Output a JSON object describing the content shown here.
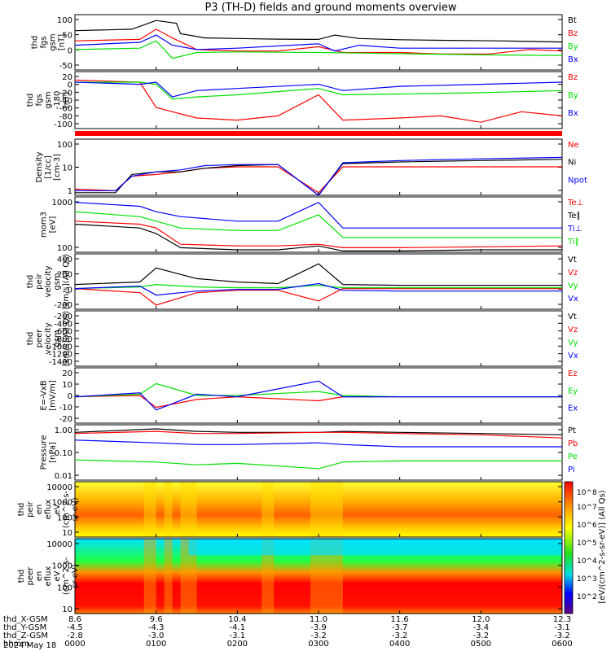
{
  "title": "P3 (TH-D) fields and ground moments overview",
  "date_label": "2024 May 18",
  "ephemeris": {
    "rows": [
      {
        "name": "thd_X-GSM",
        "values": [
          "8.6",
          "9.6",
          "10.4",
          "11.0",
          "11.6",
          "12.0",
          "12.3"
        ]
      },
      {
        "name": "thd_Y-GSM",
        "values": [
          "-4.5",
          "-4.3",
          "-4.1",
          "-3.9",
          "-3.7",
          "-3.4",
          "-3.1"
        ]
      },
      {
        "name": "thd_Z-GSM",
        "values": [
          "-2.8",
          "-3.0",
          "-3.1",
          "-3.2",
          "-3.2",
          "-3.2",
          "-3.2"
        ]
      },
      {
        "name": "hhmm",
        "values": [
          "0000",
          "0100",
          "0200",
          "0300",
          "0400",
          "0500",
          "0600"
        ]
      }
    ]
  },
  "colorbar": {
    "label": "[eV/(cm^2-s-sr-eV)] (All Qs)",
    "ticks": [
      "10^8",
      "10^7",
      "10^6",
      "10^5",
      "10^4",
      "10^3",
      "10^2"
    ]
  },
  "colors": {
    "black": "#000000",
    "red": "#ff0000",
    "green": "#00e000",
    "blue": "#0000ff"
  },
  "chart_data": [
    {
      "type": "line",
      "ylabel": [
        "thd",
        "fgs",
        "gsm",
        "[nT]"
      ],
      "yticks": [
        "100",
        "50",
        "0",
        "-50"
      ],
      "legend": [
        {
          "text": "Bt",
          "color": "black"
        },
        {
          "text": "Bz",
          "color": "red"
        },
        {
          "text": "By",
          "color": "green"
        },
        {
          "text": "Bx",
          "color": "blue"
        }
      ],
      "series": [
        {
          "color": "black",
          "x": [
            0,
            0.7,
            1.0,
            1.25,
            1.3,
            1.6,
            2,
            2.5,
            3,
            3.2,
            3.5,
            4,
            4.5,
            5.2,
            5.6,
            6
          ],
          "y": [
            55,
            60,
            90,
            80,
            45,
            30,
            28,
            26,
            25,
            40,
            28,
            24,
            22,
            20,
            18,
            16
          ]
        },
        {
          "color": "red",
          "x": [
            0,
            0.8,
            1.0,
            1.2,
            1.5,
            2,
            2.5,
            3,
            3.3,
            4,
            4.5,
            5.1,
            5.6,
            6
          ],
          "y": [
            20,
            25,
            60,
            30,
            -10,
            -15,
            -15,
            0,
            -20,
            -20,
            -25,
            -25,
            -10,
            -15
          ]
        },
        {
          "color": "green",
          "x": [
            0,
            0.8,
            1.0,
            1.2,
            1.5,
            2,
            3,
            3.5,
            4,
            5,
            6
          ],
          "y": [
            -10,
            -5,
            20,
            -40,
            -20,
            -18,
            -20,
            -22,
            -24,
            -28,
            -30
          ]
        },
        {
          "color": "blue",
          "x": [
            0,
            0.8,
            1.0,
            1.2,
            1.5,
            2,
            3,
            3.2,
            3.5,
            4,
            5,
            6
          ],
          "y": [
            5,
            15,
            40,
            5,
            -10,
            -5,
            10,
            -15,
            5,
            -5,
            -5,
            -5
          ]
        }
      ]
    },
    {
      "type": "line",
      "ylabel": [
        "thd",
        "fgs",
        "gsm",
        "-180",
        "[nT]"
      ],
      "yticks": [
        "20",
        "0",
        "-20",
        "-40",
        "-60",
        "-80",
        "-100"
      ],
      "legend": [
        {
          "text": "Bz",
          "color": "red"
        },
        {
          "text": "By",
          "color": "green"
        },
        {
          "text": "Bx",
          "color": "blue"
        }
      ],
      "series": [
        {
          "color": "red",
          "x": [
            0,
            0.8,
            1.0,
            1.2,
            1.5,
            2,
            2.5,
            3,
            3.3,
            4,
            4.5,
            5,
            5.5,
            6
          ],
          "y": [
            5,
            0,
            -60,
            -70,
            -85,
            -90,
            -80,
            -30,
            -90,
            -85,
            -80,
            -95,
            -70,
            -80
          ]
        },
        {
          "color": "green",
          "x": [
            0,
            0.8,
            1.0,
            1.2,
            1.5,
            2,
            3,
            3.3,
            4,
            5,
            6
          ],
          "y": [
            0,
            0,
            -5,
            -40,
            -35,
            -30,
            -15,
            -30,
            -28,
            -25,
            -20
          ]
        },
        {
          "color": "blue",
          "x": [
            0,
            0.8,
            1.0,
            1.2,
            1.5,
            2,
            3,
            3.3,
            4,
            5,
            6
          ],
          "y": [
            0,
            -5,
            0,
            -35,
            -20,
            -15,
            -5,
            -20,
            -10,
            -5,
            0
          ]
        }
      ]
    },
    {
      "type": "line",
      "ylabel": [
        "Density",
        "[1/cc]",
        "[cm-3]"
      ],
      "yticks": [
        "100",
        "10",
        "1"
      ],
      "log": true,
      "legend": [
        {
          "text": "Ne",
          "color": "red"
        },
        {
          "text": "Ni",
          "color": "black"
        },
        {
          "text": "Npot",
          "color": "blue"
        }
      ],
      "series": [
        {
          "color": "red",
          "x": [
            0,
            0.5,
            0.7,
            1,
            1.3,
            1.6,
            2,
            2.5,
            3,
            3.3,
            4,
            5,
            6
          ],
          "y": [
            0.6,
            0.5,
            2.5,
            3,
            4,
            6,
            7,
            7,
            0.4,
            7,
            7,
            7,
            7
          ]
        },
        {
          "color": "black",
          "x": [
            0,
            0.5,
            0.7,
            1,
            1.3,
            1.6,
            2,
            2.5,
            3,
            3.3,
            4,
            5,
            6
          ],
          "y": [
            0.4,
            0.4,
            3,
            4,
            4,
            6,
            8,
            9,
            0.3,
            10,
            12,
            14,
            16
          ]
        },
        {
          "color": "blue",
          "x": [
            0,
            0.5,
            0.7,
            1,
            1.3,
            1.6,
            2,
            2.5,
            3,
            3.3,
            4,
            5,
            6
          ],
          "y": [
            0.5,
            0.5,
            2.5,
            4,
            5,
            8,
            9,
            9,
            0.3,
            11,
            14,
            17,
            20
          ]
        }
      ]
    },
    {
      "type": "line",
      "ylabel": [
        "mom3",
        "[eV]"
      ],
      "yticks": [
        "1000",
        "100"
      ],
      "log": true,
      "legend": [
        {
          "text": "Te⊥",
          "color": "red"
        },
        {
          "text": "Te∥",
          "color": "black"
        },
        {
          "text": "Ti⊥",
          "color": "blue"
        },
        {
          "text": "Ti∥",
          "color": "green"
        }
      ],
      "series": [
        {
          "color": "red",
          "x": [
            0,
            0.8,
            1,
            1.3,
            2,
            2.5,
            3,
            3.3,
            4,
            5,
            6
          ],
          "y": [
            500,
            400,
            300,
            90,
            80,
            80,
            90,
            70,
            70,
            75,
            80
          ]
        },
        {
          "color": "black",
          "x": [
            0,
            0.8,
            1,
            1.3,
            2,
            2.5,
            3,
            3.3,
            4,
            5,
            6
          ],
          "y": [
            400,
            300,
            200,
            70,
            60,
            60,
            80,
            55,
            55,
            60,
            60
          ]
        },
        {
          "color": "blue",
          "x": [
            0,
            0.8,
            1,
            1.3,
            2,
            2.5,
            3,
            3.3,
            4,
            5,
            6
          ],
          "y": [
            2000,
            1500,
            1000,
            700,
            500,
            500,
            2000,
            300,
            300,
            300,
            300
          ]
        },
        {
          "color": "green",
          "x": [
            0,
            0.8,
            1,
            1.3,
            2,
            2.5,
            3,
            3.3,
            4,
            5,
            6
          ],
          "y": [
            1000,
            700,
            500,
            300,
            250,
            250,
            800,
            150,
            150,
            150,
            150
          ]
        }
      ]
    },
    {
      "type": "line",
      "ylabel": [
        "thd",
        "peir",
        "velocity",
        "gsm",
        "[km/s](All Qs)"
      ],
      "yticks": [
        "400",
        "200",
        "0",
        "-200"
      ],
      "legend": [
        {
          "text": "Vt",
          "color": "black"
        },
        {
          "text": "Vz",
          "color": "red"
        },
        {
          "text": "Vy",
          "color": "green"
        },
        {
          "text": "Vx",
          "color": "blue"
        }
      ],
      "series": [
        {
          "color": "black",
          "x": [
            0,
            0.8,
            1,
            1.5,
            2,
            2.5,
            3,
            3.3,
            4,
            5,
            6
          ],
          "y": [
            50,
            80,
            250,
            120,
            80,
            60,
            300,
            50,
            40,
            40,
            40
          ]
        },
        {
          "color": "red",
          "x": [
            0,
            0.8,
            1,
            1.5,
            2,
            2.5,
            3,
            3.3,
            4,
            5,
            6
          ],
          "y": [
            0,
            -50,
            -200,
            -50,
            -20,
            -20,
            -150,
            0,
            0,
            0,
            0
          ]
        },
        {
          "color": "green",
          "x": [
            0,
            0.8,
            1,
            1.5,
            2,
            2.5,
            3,
            3.3,
            4,
            5,
            6
          ],
          "y": [
            0,
            20,
            50,
            20,
            10,
            10,
            40,
            10,
            10,
            10,
            10
          ]
        },
        {
          "color": "blue",
          "x": [
            0,
            0.8,
            1,
            1.5,
            2,
            2.5,
            3,
            3.3,
            4,
            5,
            6
          ],
          "y": [
            0,
            30,
            -80,
            -30,
            -10,
            -10,
            60,
            -20,
            -30,
            -30,
            -30
          ]
        }
      ]
    },
    {
      "type": "line",
      "ylabel": [
        "thd",
        "peer",
        "velocity",
        "gsm",
        "[km/s](All Qs)"
      ],
      "yticks": [
        "-200",
        "-400",
        "-600",
        "-800",
        "-1000",
        "-1200",
        "-1400"
      ],
      "legend": [
        {
          "text": "Vt",
          "color": "black"
        },
        {
          "text": "Vz",
          "color": "red"
        },
        {
          "text": "Vy",
          "color": "green"
        },
        {
          "text": "Vx",
          "color": "blue"
        }
      ],
      "series": []
    },
    {
      "type": "line",
      "ylabel": [
        "E=-VxB",
        "[mV/m]"
      ],
      "yticks": [
        "20",
        "10",
        "0",
        "-10",
        "-20"
      ],
      "legend": [
        {
          "text": "Ez",
          "color": "red"
        },
        {
          "text": "Ey",
          "color": "green"
        },
        {
          "text": "Ex",
          "color": "blue"
        }
      ],
      "series": [
        {
          "color": "red",
          "x": [
            0,
            0.8,
            1,
            1.5,
            2,
            3,
            3.3,
            4,
            6
          ],
          "y": [
            0,
            1,
            -8,
            -2,
            0,
            -3,
            0,
            0,
            0
          ]
        },
        {
          "color": "green",
          "x": [
            0,
            0.8,
            1,
            1.5,
            2,
            3,
            3.3,
            4,
            6
          ],
          "y": [
            0,
            2,
            10,
            1,
            1,
            4,
            1,
            0,
            0
          ]
        },
        {
          "color": "blue",
          "x": [
            0,
            0.8,
            1,
            1.5,
            2,
            3,
            3.3,
            4,
            6
          ],
          "y": [
            0,
            3,
            -10,
            2,
            0,
            12,
            0,
            0,
            0
          ]
        }
      ]
    },
    {
      "type": "line",
      "ylabel": [
        "Pressure",
        "[nPa]"
      ],
      "yticks": [
        "1.00",
        "0.10",
        "0.01"
      ],
      "log": true,
      "legend": [
        {
          "text": "Pt",
          "color": "black"
        },
        {
          "text": "Pb",
          "color": "red"
        },
        {
          "text": "Pe",
          "color": "green"
        },
        {
          "text": "Pi",
          "color": "blue"
        }
      ],
      "series": [
        {
          "color": "black",
          "x": [
            0,
            1,
            1.5,
            2,
            3,
            3.3,
            4,
            5,
            6
          ],
          "y": [
            0.9,
            1.3,
            1.0,
            0.9,
            0.9,
            1.0,
            0.9,
            0.8,
            0.7
          ]
        },
        {
          "color": "red",
          "x": [
            0,
            1,
            1.5,
            2,
            3,
            3.3,
            4,
            5,
            6
          ],
          "y": [
            0.8,
            1.0,
            0.8,
            0.8,
            0.9,
            0.9,
            0.8,
            0.7,
            0.5
          ]
        },
        {
          "color": "green",
          "x": [
            0,
            1,
            1.5,
            2,
            3,
            3.3,
            4,
            5,
            6
          ],
          "y": [
            0.05,
            0.04,
            0.03,
            0.035,
            0.02,
            0.04,
            0.045,
            0.045,
            0.045
          ]
        },
        {
          "color": "blue",
          "x": [
            0,
            1,
            1.5,
            2,
            3,
            3.3,
            4,
            5,
            6
          ],
          "y": [
            0.4,
            0.3,
            0.25,
            0.25,
            0.3,
            0.25,
            0.2,
            0.2,
            0.2
          ]
        }
      ]
    },
    {
      "type": "heatmap",
      "ylabel": [
        "thd",
        "peir",
        "en",
        "eflux",
        "eV",
        "(cm^2-s-",
        "sr-eV)"
      ],
      "yticks": [
        "10000",
        "1000",
        "100",
        "10"
      ],
      "log": true
    },
    {
      "type": "heatmap",
      "ylabel": [
        "thd",
        "peer",
        "en",
        "eflux",
        "eV",
        "(cm^2-s-",
        "sr-eV)"
      ],
      "yticks": [
        "10000",
        "1000",
        "100",
        "10"
      ],
      "log": true
    }
  ]
}
